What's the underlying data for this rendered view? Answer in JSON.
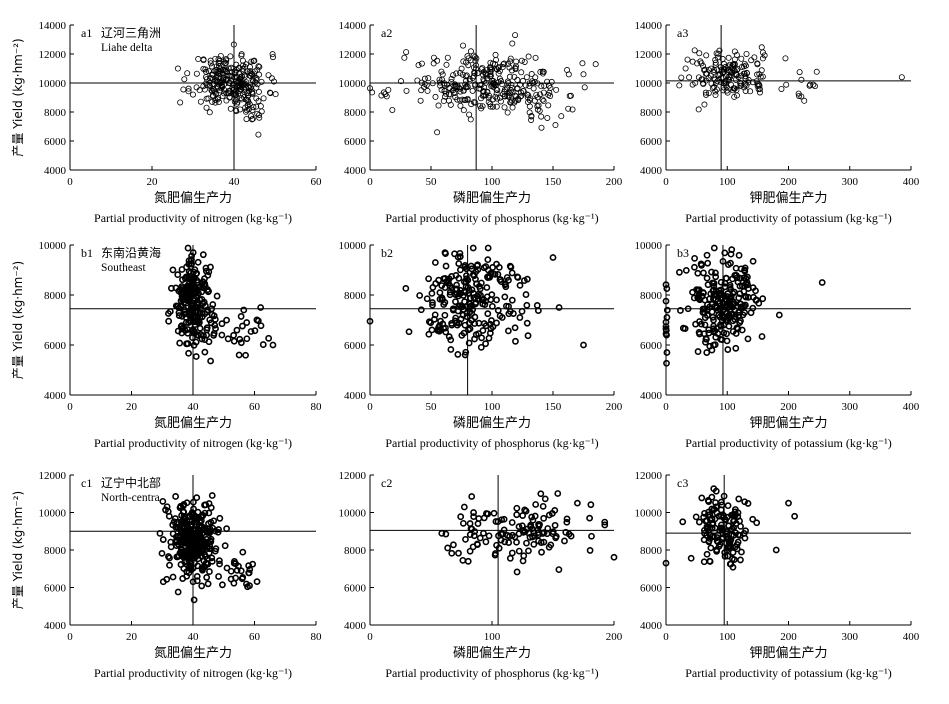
{
  "chart_data": [
    {
      "id": "a1",
      "type": "scatter",
      "panel_label": "a1",
      "region_cn": "辽河三角洲",
      "region_en": "Liahe delta",
      "xlabel_cn": "氮肥偏生产力",
      "xlabel_en": "Partial productivity of nitrogen (kg·kg⁻¹)",
      "ylabel": "产量 Yield (kg·hm⁻²)",
      "xlim": [
        0,
        60
      ],
      "ylim": [
        4000,
        14000
      ],
      "xticks": [
        0,
        20,
        40,
        60
      ],
      "yticks": [
        4000,
        6000,
        8000,
        10000,
        12000,
        14000
      ],
      "ref_x": 40,
      "ref_y": 10000
    },
    {
      "id": "a2",
      "type": "scatter",
      "panel_label": "a2",
      "xlabel_cn": "磷肥偏生产力",
      "xlabel_en": "Partial productivity of phosphorus (kg·kg⁻¹)",
      "xlim": [
        0,
        200
      ],
      "ylim": [
        4000,
        14000
      ],
      "xticks": [
        0,
        50,
        100,
        150,
        200
      ],
      "yticks": [
        4000,
        6000,
        8000,
        10000,
        12000,
        14000
      ],
      "ref_x": 87,
      "ref_y": 10000
    },
    {
      "id": "a3",
      "type": "scatter",
      "panel_label": "a3",
      "xlabel_cn": "钾肥偏生产力",
      "xlabel_en": "Partial productivity of potassium (kg·kg⁻¹)",
      "xlim": [
        0,
        400
      ],
      "ylim": [
        4000,
        14000
      ],
      "xticks": [
        0,
        100,
        200,
        300,
        400
      ],
      "yticks": [
        4000,
        6000,
        8000,
        10000,
        12000,
        14000
      ],
      "ref_x": 90,
      "ref_y": 10150
    },
    {
      "id": "b1",
      "type": "scatter",
      "panel_label": "b1",
      "region_cn": "东南沿黄海",
      "region_en": "Southeast",
      "xlabel_cn": "氮肥偏生产力",
      "xlabel_en": "Partial productivity of nitrogen (kg·kg⁻¹)",
      "ylabel": "产量 Yield (kg·hm⁻²)",
      "xlim": [
        0,
        80
      ],
      "ylim": [
        4000,
        10000
      ],
      "xticks": [
        0,
        20,
        40,
        60,
        80
      ],
      "yticks": [
        4000,
        6000,
        8000,
        10000
      ],
      "ref_x": 40,
      "ref_y": 7450
    },
    {
      "id": "b2",
      "type": "scatter",
      "panel_label": "b2",
      "xlabel_cn": "磷肥偏生产力",
      "xlabel_en": "Partial productivity of phosphorus (kg·kg⁻¹)",
      "xlim": [
        0,
        200
      ],
      "ylim": [
        4000,
        10000
      ],
      "xticks": [
        0,
        50,
        100,
        150,
        200
      ],
      "yticks": [
        4000,
        6000,
        8000,
        10000
      ],
      "ref_x": 80,
      "ref_y": 7450
    },
    {
      "id": "b3",
      "type": "scatter",
      "panel_label": "b3",
      "xlabel_cn": "钾肥偏生产力",
      "xlabel_en": "Partial productivity of potassium (kg·kg⁻¹)",
      "xlim": [
        0,
        400
      ],
      "ylim": [
        4000,
        10000
      ],
      "xticks": [
        0,
        100,
        200,
        300,
        400
      ],
      "yticks": [
        4000,
        6000,
        8000,
        10000
      ],
      "ref_x": 93,
      "ref_y": 7450
    },
    {
      "id": "c1",
      "type": "scatter",
      "panel_label": "c1",
      "region_cn": "辽宁中北部",
      "region_en": "North-centra",
      "xlabel_cn": "氮肥偏生产力",
      "xlabel_en": "Partial productivity of nitrogen (kg·kg⁻¹)",
      "ylabel": "产量 Yield (kg·hm⁻²)",
      "xlim": [
        0,
        80
      ],
      "ylim": [
        4000,
        12000
      ],
      "xticks": [
        0,
        20,
        40,
        60,
        80
      ],
      "yticks": [
        4000,
        6000,
        8000,
        10000,
        12000
      ],
      "ref_x": 40,
      "ref_y": 9000
    },
    {
      "id": "c2",
      "type": "scatter",
      "panel_label": "c2",
      "xlabel_cn": "磷肥偏生产力",
      "xlabel_en": "Partial productivity of phosphorus (kg·kg⁻¹)",
      "xlim": [
        0,
        200
      ],
      "ylim": [
        4000,
        12000
      ],
      "xticks": [
        0,
        100,
        200
      ],
      "yticks": [
        4000,
        6000,
        8000,
        10000,
        12000
      ],
      "ref_x": 105,
      "ref_y": 9050
    },
    {
      "id": "c3",
      "type": "scatter",
      "panel_label": "c3",
      "xlabel_cn": "钾肥偏生产力",
      "xlabel_en": "Partial productivity of  potassium (kg·kg⁻¹)",
      "xlim": [
        0,
        400
      ],
      "ylim": [
        4000,
        12000
      ],
      "xticks": [
        0,
        100,
        200,
        300,
        400
      ],
      "yticks": [
        4000,
        6000,
        8000,
        10000,
        12000
      ],
      "ref_x": 95,
      "ref_y": 8900
    }
  ],
  "clusters": {
    "a1": [
      {
        "cx": 39,
        "cy": 10200,
        "sx": 4.5,
        "sy": 900,
        "n": 250,
        "seed": 11
      },
      {
        "cx": 44,
        "cy": 8600,
        "sx": 3,
        "sy": 700,
        "n": 40,
        "seed": 12
      }
    ],
    "a2": [
      {
        "cx": 95,
        "cy": 10000,
        "sx": 32,
        "sy": 1000,
        "n": 260,
        "seed": 21
      },
      {
        "cx": 120,
        "cy": 9000,
        "sx": 20,
        "sy": 700,
        "n": 60,
        "seed": 22
      }
    ],
    "a3": [
      {
        "cx": 100,
        "cy": 10500,
        "sx": 35,
        "sy": 800,
        "n": 170,
        "seed": 31
      },
      {
        "cx": 230,
        "cy": 9600,
        "sx": 15,
        "sy": 600,
        "n": 12,
        "seed": 32
      }
    ],
    "b1": [
      {
        "cx": 40,
        "cy": 8000,
        "sx": 3,
        "sy": 700,
        "n": 180,
        "seed": 41
      },
      {
        "cx": 40,
        "cy": 6700,
        "sx": 5,
        "sy": 500,
        "n": 50,
        "seed": 42
      },
      {
        "cx": 56,
        "cy": 6600,
        "sx": 4,
        "sy": 600,
        "n": 20,
        "seed": 43
      }
    ],
    "b2": [
      {
        "cx": 85,
        "cy": 8000,
        "sx": 22,
        "sy": 900,
        "n": 200,
        "seed": 51
      },
      {
        "cx": 70,
        "cy": 6600,
        "sx": 15,
        "sy": 500,
        "n": 40,
        "seed": 52
      }
    ],
    "b3": [
      {
        "cx": 95,
        "cy": 8000,
        "sx": 28,
        "sy": 850,
        "n": 200,
        "seed": 61
      },
      {
        "cx": 0,
        "cy": 7000,
        "sx": 1,
        "sy": 800,
        "n": 12,
        "seed": 62
      },
      {
        "cx": 70,
        "cy": 6600,
        "sx": 20,
        "sy": 500,
        "n": 35,
        "seed": 63
      }
    ],
    "c1": [
      {
        "cx": 40,
        "cy": 8500,
        "sx": 4,
        "sy": 1000,
        "n": 330,
        "seed": 71
      },
      {
        "cx": 55,
        "cy": 6700,
        "sx": 4,
        "sy": 500,
        "n": 25,
        "seed": 72
      }
    ],
    "c2": [
      {
        "cx": 120,
        "cy": 9000,
        "sx": 28,
        "sy": 850,
        "n": 130,
        "seed": 81
      }
    ],
    "c3": [
      {
        "cx": 90,
        "cy": 9000,
        "sx": 20,
        "sy": 900,
        "n": 140,
        "seed": 91
      }
    ]
  },
  "extra_points": {
    "a2": [
      [
        185,
        11300
      ],
      [
        175,
        10600
      ],
      [
        176,
        9700
      ],
      [
        45,
        10300
      ],
      [
        55,
        6600
      ]
    ],
    "a3": [
      [
        385,
        10400
      ],
      [
        195,
        11700
      ]
    ],
    "b1": [
      [
        66,
        6000
      ],
      [
        62,
        7500
      ],
      [
        55,
        5600
      ]
    ],
    "b2": [
      [
        175,
        6000
      ],
      [
        150,
        9500
      ],
      [
        0,
        6950
      ],
      [
        155,
        7500
      ]
    ],
    "b3": [
      [
        255,
        8500
      ],
      [
        185,
        7200
      ]
    ],
    "c2": [
      [
        170,
        10500
      ],
      [
        140,
        11000
      ],
      [
        180,
        9700
      ]
    ],
    "c3": [
      [
        210,
        9800
      ],
      [
        200,
        10500
      ],
      [
        0,
        7300
      ],
      [
        180,
        8000
      ]
    ]
  }
}
